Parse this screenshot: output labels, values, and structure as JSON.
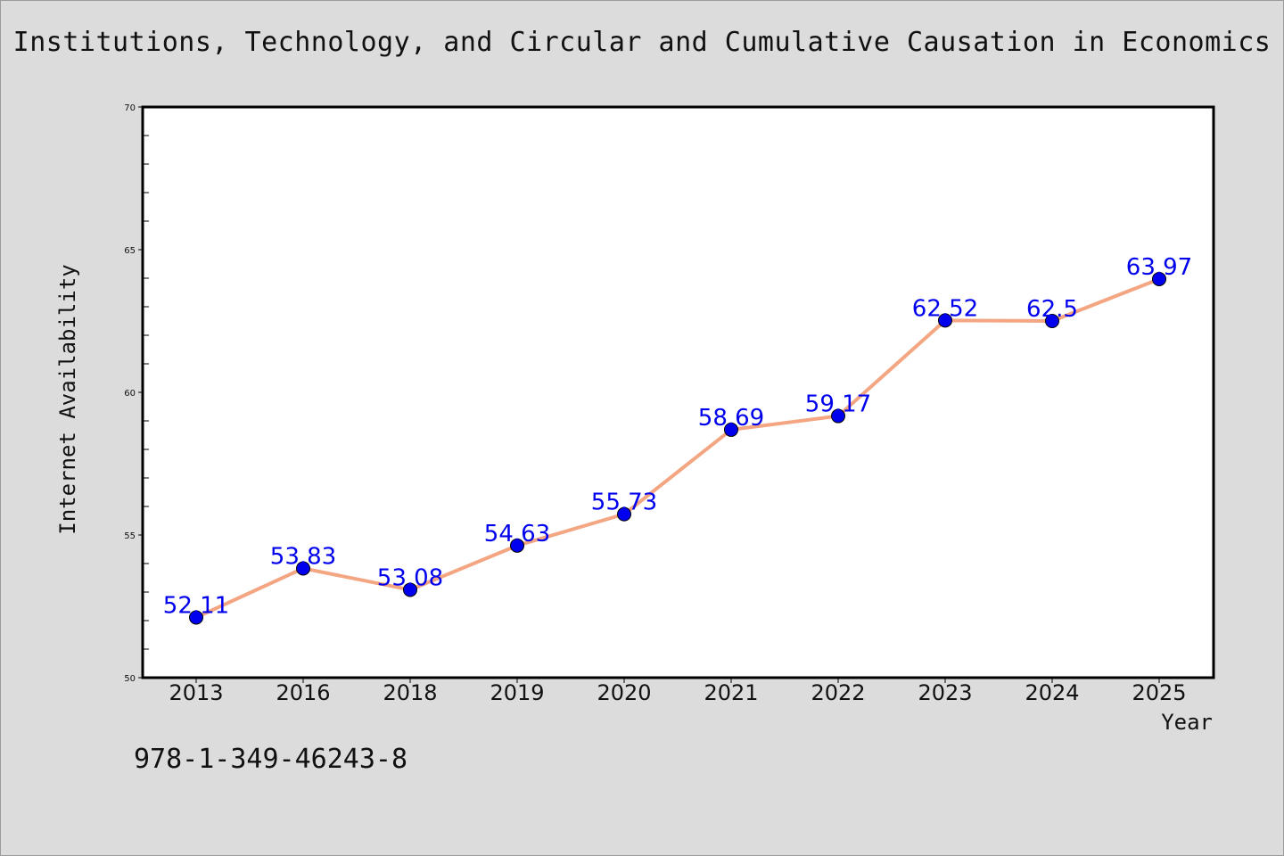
{
  "title": "Institutions, Technology, and Circular and Cumulative Causation in Economics",
  "footer_text": "978-1-349-46243-8",
  "colors": {
    "background": "#dcdcdc",
    "plot_background": "#ffffff",
    "line": "#f4a582",
    "marker": "#0000ee",
    "data_label": "#0000ee"
  },
  "chart_data": {
    "type": "line",
    "xlabel": "Year",
    "ylabel": "Internet Availability",
    "categories": [
      "2013",
      "2016",
      "2018",
      "2019",
      "2020",
      "2021",
      "2022",
      "2023",
      "2024",
      "2025"
    ],
    "series": [
      {
        "values": [
          52.11,
          53.83,
          53.08,
          54.63,
          55.73,
          58.69,
          59.17,
          62.52,
          62.5,
          63.97
        ],
        "labels": [
          "52.11",
          "53.83",
          "53.08",
          "54.63",
          "55.73",
          "58.69",
          "59.17",
          "62.52",
          "62.5",
          "63.97"
        ]
      }
    ],
    "ylim": [
      50,
      70
    ],
    "yticks": [
      "50",
      "55",
      "60",
      "65",
      "70"
    ],
    "grid": false,
    "legend": "none"
  }
}
